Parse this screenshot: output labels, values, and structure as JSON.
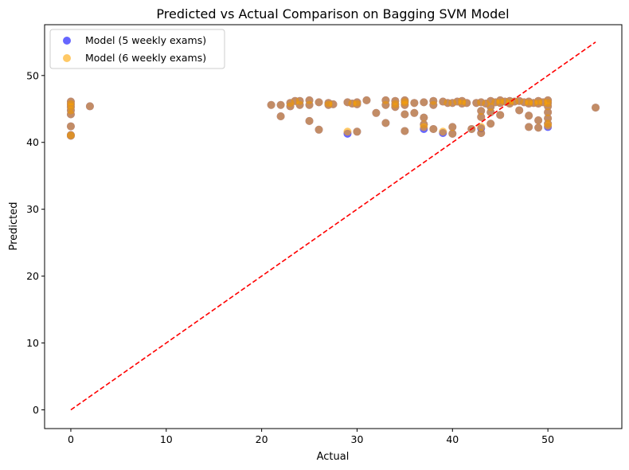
{
  "chart_data": {
    "type": "scatter",
    "title": "Predicted vs Actual Comparison on Bagging SVM Model",
    "xlabel": "Actual",
    "ylabel": "Predicted",
    "xlim": [
      -2.75,
      57.75
    ],
    "ylim": [
      -2.8,
      57.6
    ],
    "xticks": [
      0,
      10,
      20,
      30,
      40,
      50
    ],
    "yticks": [
      0,
      10,
      20,
      30,
      40,
      50
    ],
    "grid": false,
    "legend_position": "top-left",
    "reference_line": {
      "from": [
        0,
        0
      ],
      "to": [
        55,
        55
      ],
      "color": "#ff0000",
      "style": "dashed"
    },
    "series": [
      {
        "name": "Model (5 weekly exams)",
        "color": "#0000ff",
        "alpha": 0.6,
        "points": [
          [
            0,
            41.1
          ],
          [
            0,
            41.0
          ],
          [
            0,
            42.4
          ],
          [
            0,
            44.2
          ],
          [
            0,
            44.8
          ],
          [
            0,
            45.3
          ],
          [
            0,
            45.7
          ],
          [
            0,
            46.1
          ],
          [
            2,
            45.4
          ],
          [
            21,
            45.6
          ],
          [
            22,
            45.6
          ],
          [
            22,
            43.9
          ],
          [
            23,
            45.4
          ],
          [
            23,
            45.9
          ],
          [
            23.5,
            46.2
          ],
          [
            24,
            46.2
          ],
          [
            24,
            45.6
          ],
          [
            25,
            46.3
          ],
          [
            25,
            45.6
          ],
          [
            25,
            43.2
          ],
          [
            26,
            41.9
          ],
          [
            26,
            46.0
          ],
          [
            27,
            45.9
          ],
          [
            27,
            45.6
          ],
          [
            27.5,
            45.7
          ],
          [
            29,
            41.3
          ],
          [
            29,
            46.0
          ],
          [
            29.5,
            45.8
          ],
          [
            30,
            41.6
          ],
          [
            30,
            46.0
          ],
          [
            30,
            45.7
          ],
          [
            31,
            46.3
          ],
          [
            32,
            44.4
          ],
          [
            33,
            46.3
          ],
          [
            33,
            45.6
          ],
          [
            33,
            42.9
          ],
          [
            34,
            46.2
          ],
          [
            34,
            45.3
          ],
          [
            34,
            45.7
          ],
          [
            35,
            46.3
          ],
          [
            35,
            46.0
          ],
          [
            35,
            45.6
          ],
          [
            35,
            44.2
          ],
          [
            35,
            41.7
          ],
          [
            36,
            45.9
          ],
          [
            36,
            44.4
          ],
          [
            37,
            46.0
          ],
          [
            37,
            43.7
          ],
          [
            37,
            42.7
          ],
          [
            37,
            42.0
          ],
          [
            38,
            46.2
          ],
          [
            38,
            45.6
          ],
          [
            38,
            42.0
          ],
          [
            39,
            46.1
          ],
          [
            39,
            41.4
          ],
          [
            39.5,
            45.9
          ],
          [
            40,
            45.9
          ],
          [
            40,
            42.3
          ],
          [
            40,
            41.3
          ],
          [
            40.5,
            46.1
          ],
          [
            41,
            46.2
          ],
          [
            41,
            45.8
          ],
          [
            41.5,
            45.9
          ],
          [
            42,
            42.0
          ],
          [
            42.5,
            45.9
          ],
          [
            43,
            46.0
          ],
          [
            43,
            44.7
          ],
          [
            43,
            43.8
          ],
          [
            43,
            42.1
          ],
          [
            43,
            41.4
          ],
          [
            43.5,
            45.8
          ],
          [
            44,
            46.2
          ],
          [
            44,
            45.3
          ],
          [
            44,
            44.5
          ],
          [
            44,
            42.8
          ],
          [
            44.5,
            46.0
          ],
          [
            45,
            46.3
          ],
          [
            45,
            45.9
          ],
          [
            45,
            44.1
          ],
          [
            45.5,
            46.1
          ],
          [
            46,
            46.2
          ],
          [
            46,
            45.8
          ],
          [
            46.5,
            46.1
          ],
          [
            47,
            46.2
          ],
          [
            47,
            44.8
          ],
          [
            47.5,
            46.0
          ],
          [
            48,
            46.1
          ],
          [
            48,
            45.8
          ],
          [
            48,
            44.0
          ],
          [
            48,
            42.3
          ],
          [
            48.5,
            45.9
          ],
          [
            49,
            46.2
          ],
          [
            49,
            45.8
          ],
          [
            49,
            43.3
          ],
          [
            49,
            42.2
          ],
          [
            49.5,
            46.0
          ],
          [
            50,
            46.3
          ],
          [
            50,
            45.9
          ],
          [
            50,
            45.4
          ],
          [
            50,
            44.5
          ],
          [
            50,
            43.6
          ],
          [
            50,
            42.8
          ],
          [
            50,
            42.3
          ],
          [
            55,
            45.2
          ]
        ]
      },
      {
        "name": "Model (6 weekly exams)",
        "color": "#ffa500",
        "alpha": 0.6,
        "points": [
          [
            0,
            41.1
          ],
          [
            0,
            41.0
          ],
          [
            0,
            42.4
          ],
          [
            0,
            44.2
          ],
          [
            0,
            44.8
          ],
          [
            0,
            45.3
          ],
          [
            0,
            45.7
          ],
          [
            0,
            46.1
          ],
          [
            2,
            45.4
          ],
          [
            21,
            45.6
          ],
          [
            22,
            45.6
          ],
          [
            22,
            43.9
          ],
          [
            23,
            45.4
          ],
          [
            23,
            45.9
          ],
          [
            23.5,
            46.2
          ],
          [
            24,
            46.2
          ],
          [
            24,
            45.6
          ],
          [
            25,
            46.3
          ],
          [
            25,
            45.6
          ],
          [
            25,
            43.2
          ],
          [
            26,
            41.9
          ],
          [
            26,
            46.0
          ],
          [
            27,
            45.9
          ],
          [
            27,
            45.6
          ],
          [
            27.5,
            45.7
          ],
          [
            29,
            41.6
          ],
          [
            29,
            46.0
          ],
          [
            29.5,
            45.8
          ],
          [
            30,
            41.6
          ],
          [
            30,
            46.0
          ],
          [
            30,
            45.7
          ],
          [
            31,
            46.3
          ],
          [
            32,
            44.4
          ],
          [
            33,
            46.3
          ],
          [
            33,
            45.6
          ],
          [
            33,
            42.9
          ],
          [
            34,
            46.2
          ],
          [
            34,
            45.3
          ],
          [
            34,
            45.7
          ],
          [
            35,
            46.3
          ],
          [
            35,
            46.0
          ],
          [
            35,
            45.6
          ],
          [
            35,
            44.2
          ],
          [
            35,
            41.7
          ],
          [
            36,
            45.9
          ],
          [
            36,
            44.4
          ],
          [
            37,
            46.0
          ],
          [
            37,
            43.7
          ],
          [
            37,
            42.7
          ],
          [
            37,
            42.3
          ],
          [
            38,
            46.2
          ],
          [
            38,
            45.6
          ],
          [
            38,
            42.0
          ],
          [
            39,
            46.1
          ],
          [
            39,
            41.6
          ],
          [
            39.5,
            45.9
          ],
          [
            40,
            45.9
          ],
          [
            40,
            42.3
          ],
          [
            40,
            41.3
          ],
          [
            40.5,
            46.1
          ],
          [
            41,
            46.2
          ],
          [
            41,
            45.8
          ],
          [
            41.5,
            45.9
          ],
          [
            42,
            42.0
          ],
          [
            42.5,
            45.9
          ],
          [
            43,
            46.0
          ],
          [
            43,
            44.7
          ],
          [
            43,
            43.8
          ],
          [
            43,
            42.3
          ],
          [
            43,
            41.4
          ],
          [
            43.5,
            45.8
          ],
          [
            44,
            46.2
          ],
          [
            44,
            45.3
          ],
          [
            44,
            44.5
          ],
          [
            44,
            42.8
          ],
          [
            44.5,
            46.0
          ],
          [
            45,
            46.3
          ],
          [
            45,
            45.9
          ],
          [
            45,
            44.1
          ],
          [
            45.5,
            46.1
          ],
          [
            46,
            46.2
          ],
          [
            46,
            45.8
          ],
          [
            46.5,
            46.1
          ],
          [
            47,
            46.2
          ],
          [
            47,
            44.8
          ],
          [
            47.5,
            46.0
          ],
          [
            48,
            46.1
          ],
          [
            48,
            45.8
          ],
          [
            48,
            44.0
          ],
          [
            48,
            42.3
          ],
          [
            48.5,
            45.9
          ],
          [
            49,
            46.2
          ],
          [
            49,
            45.8
          ],
          [
            49,
            43.3
          ],
          [
            49,
            42.2
          ],
          [
            49.5,
            46.0
          ],
          [
            50,
            46.3
          ],
          [
            50,
            45.9
          ],
          [
            50,
            45.4
          ],
          [
            50,
            44.5
          ],
          [
            50,
            43.6
          ],
          [
            50,
            42.8
          ],
          [
            50,
            42.5
          ],
          [
            55,
            45.2
          ]
        ]
      }
    ]
  }
}
